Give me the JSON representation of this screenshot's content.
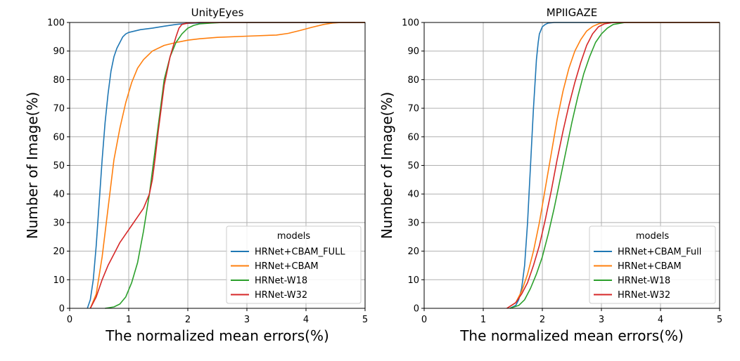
{
  "chart_data": [
    {
      "type": "line",
      "title": "UnityEyes",
      "xlabel": "The normalized mean errors(%)",
      "ylabel": "Number of Image(%)",
      "xlim": [
        0,
        5
      ],
      "ylim": [
        0,
        100
      ],
      "xticks": [
        "0",
        "1",
        "2",
        "3",
        "4",
        "5"
      ],
      "yticks": [
        "0",
        "10",
        "20",
        "30",
        "40",
        "50",
        "60",
        "70",
        "80",
        "90",
        "100"
      ],
      "grid": true,
      "legend": {
        "title": "models",
        "placement": "lower-right"
      },
      "series": [
        {
          "name": "HRNet+CBAM_FULL",
          "color": "#1f77b4",
          "x": [
            0.3,
            0.35,
            0.4,
            0.45,
            0.5,
            0.55,
            0.6,
            0.65,
            0.7,
            0.75,
            0.8,
            0.85,
            0.9,
            0.95,
            1.0,
            1.1,
            1.2,
            1.4,
            1.6,
            1.8,
            2.0,
            2.3,
            2.6
          ],
          "y": [
            0,
            3,
            10,
            22,
            37,
            52,
            65,
            75,
            83,
            88,
            91,
            93,
            95,
            96,
            96.5,
            97,
            97.5,
            98,
            98.7,
            99.3,
            99.7,
            99.9,
            100
          ]
        },
        {
          "name": "HRNet+CBAM",
          "color": "#ff7f0e",
          "x": [
            0.35,
            0.45,
            0.55,
            0.65,
            0.75,
            0.85,
            0.95,
            1.05,
            1.15,
            1.25,
            1.4,
            1.6,
            1.8,
            2.0,
            2.2,
            2.5,
            3.0,
            3.5,
            3.7,
            3.9,
            4.1,
            4.3,
            4.45,
            4.6
          ],
          "y": [
            0,
            5,
            18,
            35,
            52,
            63,
            72,
            79,
            84,
            87,
            90,
            92,
            93,
            93.8,
            94.3,
            94.8,
            95.2,
            95.6,
            96.2,
            97.2,
            98.3,
            99.3,
            99.8,
            100
          ]
        },
        {
          "name": "HRNet-W18",
          "color": "#2ca02c",
          "x": [
            0.6,
            0.75,
            0.85,
            0.95,
            1.05,
            1.15,
            1.25,
            1.35,
            1.45,
            1.55,
            1.6,
            1.7,
            1.8,
            1.9,
            2.0,
            2.1,
            2.2,
            2.4,
            2.6
          ],
          "y": [
            0,
            0.5,
            1.5,
            4,
            9,
            16,
            27,
            40,
            56,
            72,
            80,
            88,
            93,
            96,
            98,
            99,
            99.5,
            99.8,
            100
          ]
        },
        {
          "name": "HRNet-W32",
          "color": "#d62728",
          "x": [
            0.35,
            0.45,
            0.55,
            0.65,
            0.75,
            0.85,
            0.95,
            1.05,
            1.15,
            1.25,
            1.35,
            1.4,
            1.45,
            1.5,
            1.55,
            1.6,
            1.7,
            1.8,
            1.85,
            1.9,
            2.0,
            2.2
          ],
          "y": [
            0,
            4,
            10,
            15,
            19,
            23,
            26,
            29,
            32,
            35,
            40,
            45,
            53,
            62,
            70,
            78,
            88,
            95,
            98,
            99.3,
            99.8,
            100
          ]
        }
      ]
    },
    {
      "type": "line",
      "title": "MPIIGAZE",
      "xlabel": "The normalized mean errors(%)",
      "ylabel": "Number of Image(%)",
      "xlim": [
        0,
        5
      ],
      "ylim": [
        0,
        100
      ],
      "xticks": [
        "0",
        "1",
        "2",
        "3",
        "4",
        "5"
      ],
      "yticks": [
        "0",
        "10",
        "20",
        "30",
        "40",
        "50",
        "60",
        "70",
        "80",
        "90",
        "100"
      ],
      "grid": true,
      "legend": {
        "title": "models",
        "placement": "lower-right"
      },
      "series": [
        {
          "name": "HRNet+CBAM_Full",
          "color": "#1f77b4",
          "x": [
            1.45,
            1.55,
            1.6,
            1.65,
            1.7,
            1.75,
            1.78,
            1.8,
            1.83,
            1.85,
            1.88,
            1.9,
            1.93,
            1.95,
            2.0,
            2.05,
            2.1,
            2.2
          ],
          "y": [
            0,
            1,
            3,
            7,
            15,
            30,
            42,
            50,
            62,
            70,
            80,
            87,
            93,
            96,
            98.5,
            99.3,
            99.8,
            100
          ]
        },
        {
          "name": "HRNet+CBAM",
          "color": "#ff7f0e",
          "x": [
            1.4,
            1.55,
            1.65,
            1.75,
            1.85,
            1.95,
            2.05,
            2.15,
            2.25,
            2.35,
            2.45,
            2.55,
            2.65,
            2.75,
            2.85,
            2.95,
            3.0,
            3.1
          ],
          "y": [
            0,
            2,
            6,
            12,
            20,
            30,
            42,
            54,
            66,
            76,
            84,
            90,
            94,
            97,
            98.6,
            99.5,
            99.8,
            100
          ]
        },
        {
          "name": "HRNet-W18",
          "color": "#2ca02c",
          "x": [
            1.45,
            1.6,
            1.7,
            1.8,
            1.9,
            2.0,
            2.1,
            2.2,
            2.3,
            2.4,
            2.5,
            2.6,
            2.7,
            2.8,
            2.9,
            3.0,
            3.1,
            3.2,
            3.4
          ],
          "y": [
            0,
            1,
            3,
            7,
            12,
            18,
            26,
            35,
            45,
            55,
            65,
            74,
            82,
            88,
            93,
            96,
            98,
            99.3,
            100
          ]
        },
        {
          "name": "HRNet-W32",
          "color": "#d62728",
          "x": [
            1.4,
            1.55,
            1.65,
            1.75,
            1.85,
            1.95,
            2.05,
            2.15,
            2.25,
            2.35,
            2.45,
            2.55,
            2.65,
            2.75,
            2.85,
            2.95,
            3.05,
            3.2
          ],
          "y": [
            0,
            2,
            5,
            9,
            15,
            22,
            31,
            41,
            52,
            62,
            71,
            79,
            86,
            92,
            96,
            98.5,
            99.5,
            100
          ]
        }
      ]
    }
  ]
}
